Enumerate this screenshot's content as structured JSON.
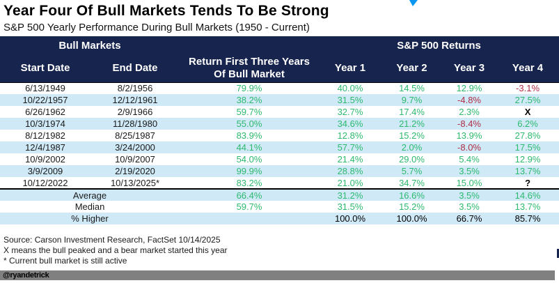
{
  "chart_data": {
    "type": "table",
    "title": "Year Four Of Bull Markets Tends To Be Strong",
    "subtitle": "S&P 500 Yearly Performance During Bull Markets (1950 - Current)",
    "group_headers": [
      "Bull Markets",
      "S&P 500 Returns"
    ],
    "columns": [
      "Start Date",
      "End Date",
      "Return First Three Years Of Bull Market",
      "Year 1",
      "Year 2",
      "Year 3",
      "Year 4"
    ],
    "rows": [
      [
        "6/13/1949",
        "8/2/1956",
        "79.9%",
        "40.0%",
        "14.5%",
        "12.9%",
        "-3.1%"
      ],
      [
        "10/22/1957",
        "12/12/1961",
        "38.2%",
        "31.5%",
        "9.7%",
        "-4.8%",
        "27.5%"
      ],
      [
        "6/26/1962",
        "2/9/1966",
        "59.7%",
        "32.7%",
        "17.4%",
        "2.3%",
        "X"
      ],
      [
        "10/3/1974",
        "11/28/1980",
        "55.0%",
        "34.6%",
        "21.2%",
        "-8.4%",
        "6.2%"
      ],
      [
        "8/12/1982",
        "8/25/1987",
        "83.9%",
        "12.8%",
        "15.2%",
        "13.9%",
        "27.8%"
      ],
      [
        "12/4/1987",
        "3/24/2000",
        "44.1%",
        "57.7%",
        "2.0%",
        "-8.0%",
        "17.5%"
      ],
      [
        "10/9/2002",
        "10/9/2007",
        "54.0%",
        "21.4%",
        "29.0%",
        "5.4%",
        "12.9%"
      ],
      [
        "3/9/2009",
        "2/19/2020",
        "99.9%",
        "28.8%",
        "5.7%",
        "3.5%",
        "13.7%"
      ],
      [
        "10/12/2022",
        "10/13/2025*",
        "83.2%",
        "21.0%",
        "34.7%",
        "15.0%",
        "?"
      ]
    ],
    "summary_rows": [
      {
        "label": "Average",
        "values": [
          "66.4%",
          "31.2%",
          "16.6%",
          "3.5%",
          "14.6%"
        ],
        "values_color": "green"
      },
      {
        "label": "Median",
        "values": [
          "59.7%",
          "31.5%",
          "15.2%",
          "3.5%",
          "13.7%"
        ],
        "values_color": "green"
      },
      {
        "label": "% Higher",
        "values": [
          "",
          "100.0%",
          "100.0%",
          "66.7%",
          "85.7%"
        ],
        "values_color": "black"
      }
    ]
  },
  "footnotes": [
    "Source: Carson Investment Research, FactSet 10/14/2025",
    "X means the bull peaked and a bear market started this year",
    "* Current bull market is still active"
  ],
  "handle": "@ryandetrick",
  "colors": {
    "navy": "#16244e",
    "stripe": "#cfe9f7",
    "green": "#2db96e",
    "red": "#b02d46",
    "gray_bar": "#808080",
    "artifact_blue": "#0a96f0"
  }
}
